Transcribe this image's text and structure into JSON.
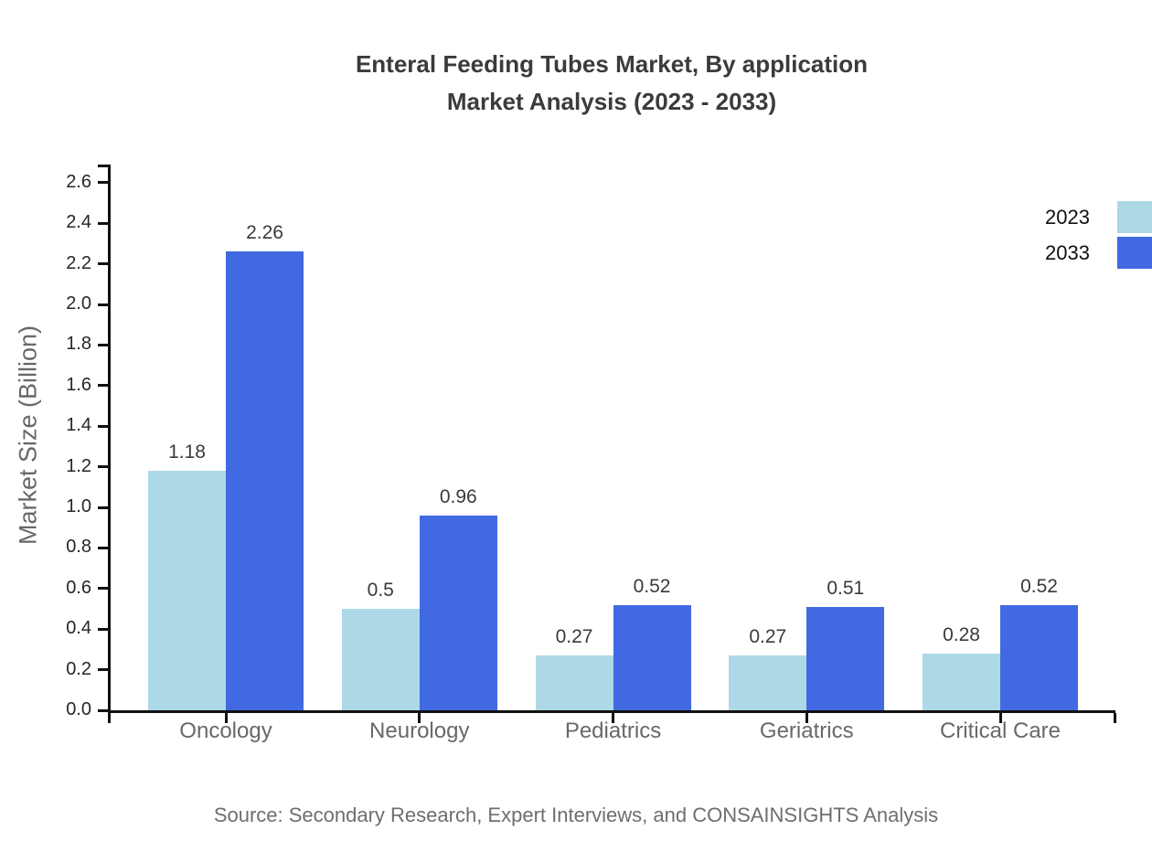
{
  "source": "Source: Secondary Research, Expert Interviews, and CONSAINSIGHTS Analysis",
  "chart_data": {
    "type": "bar",
    "title": "Enteral Feeding Tubes Market, By application",
    "subtitle": "Market Analysis (2023 - 2033)",
    "xlabel": "",
    "ylabel": "Market Size (Billion)",
    "categories": [
      "Oncology",
      "Neurology",
      "Pediatrics",
      "Geriatrics",
      "Critical Care"
    ],
    "series": [
      {
        "name": "2023",
        "color": "#ADD8E6",
        "values": [
          1.18,
          0.5,
          0.27,
          0.27,
          0.28
        ]
      },
      {
        "name": "2033",
        "color": "#4169E1",
        "values": [
          2.26,
          0.96,
          0.52,
          0.51,
          0.52
        ]
      }
    ],
    "value_labels": [
      [
        "1.18",
        "0.5",
        "0.27",
        "0.27",
        "0.28"
      ],
      [
        "2.26",
        "0.96",
        "0.52",
        "0.51",
        "0.52"
      ]
    ],
    "ylim": [
      0,
      2.7
    ],
    "yticks": [
      0.0,
      0.2,
      0.4,
      0.6,
      0.8,
      1.0,
      1.2,
      1.4,
      1.6,
      1.8,
      2.0,
      2.2,
      2.4,
      2.6
    ],
    "grid": false,
    "legend_position": "top-right",
    "axis_color": "#111111",
    "label_color": "#686868"
  }
}
